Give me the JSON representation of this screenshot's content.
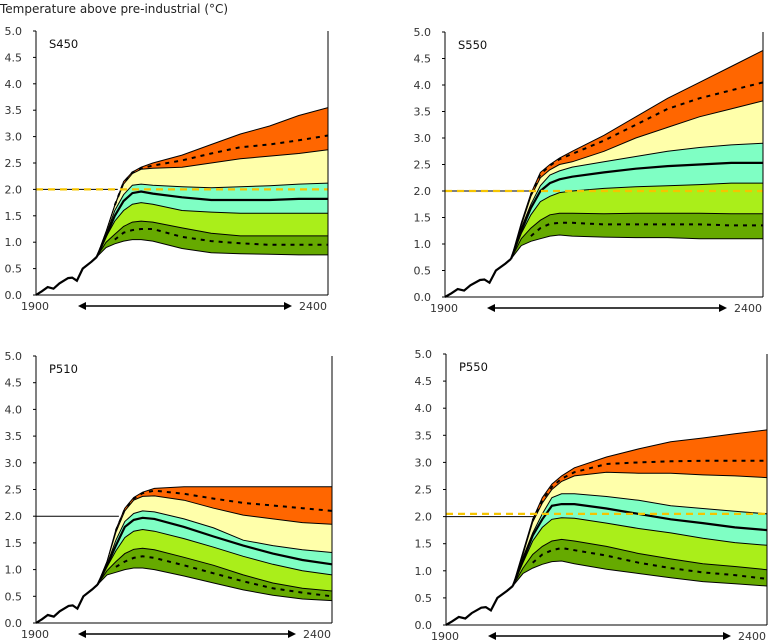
{
  "chart_data": [
    {
      "type": "area",
      "title": "S450",
      "ylabel": "Temperature above pre-industrial (°C)",
      "ylim": [
        0,
        5
      ],
      "yticks": [
        "0.0",
        "0.5",
        "1.0",
        "1.5",
        "2.0",
        "2.5",
        "3.0",
        "3.5",
        "4.0",
        "4.5",
        "5.0"
      ],
      "xlim": [
        1900,
        2400
      ],
      "xtick_labels": [
        "1900",
        "2400"
      ],
      "threshold": 2.0,
      "yellow_dashed_level": 2.0,
      "historical": [
        [
          1900,
          0
        ],
        [
          1910,
          0.07
        ],
        [
          1920,
          0.15
        ],
        [
          1930,
          0.12
        ],
        [
          1940,
          0.22
        ],
        [
          1955,
          0.32
        ],
        [
          1962,
          0.33
        ],
        [
          1970,
          0.27
        ],
        [
          1980,
          0.5
        ],
        [
          1995,
          0.63
        ],
        [
          2004,
          0.72
        ]
      ],
      "years": [
        2004,
        2020,
        2035,
        2050,
        2065,
        2080,
        2100,
        2150,
        2200,
        2250,
        2300,
        2350,
        2400
      ],
      "bounds": {
        "b0": [
          0.72,
          0.9,
          0.97,
          1.02,
          1.05,
          1.05,
          1.02,
          0.88,
          0.8,
          0.78,
          0.77,
          0.76,
          0.76
        ],
        "b1": [
          0.72,
          1.0,
          1.15,
          1.3,
          1.38,
          1.4,
          1.38,
          1.27,
          1.17,
          1.12,
          1.12,
          1.12,
          1.12
        ],
        "b2": [
          0.72,
          1.1,
          1.4,
          1.6,
          1.72,
          1.75,
          1.72,
          1.6,
          1.57,
          1.55,
          1.55,
          1.55,
          1.55
        ],
        "b3": [
          0.72,
          1.15,
          1.6,
          1.9,
          2.08,
          2.1,
          2.08,
          2.05,
          2.03,
          2.05,
          2.07,
          2.1,
          2.12
        ],
        "b4": [
          0.72,
          1.2,
          1.7,
          2.1,
          2.3,
          2.38,
          2.4,
          2.42,
          2.5,
          2.58,
          2.63,
          2.68,
          2.75
        ],
        "b5": [
          0.72,
          1.2,
          1.7,
          2.15,
          2.33,
          2.42,
          2.5,
          2.65,
          2.85,
          3.05,
          3.2,
          3.4,
          3.55
        ]
      },
      "median": [
        0.72,
        1.12,
        1.5,
        1.78,
        1.93,
        1.96,
        1.92,
        1.85,
        1.8,
        1.8,
        1.8,
        1.82,
        1.82
      ],
      "dash_low": [
        null,
        null,
        1.05,
        1.18,
        1.23,
        1.25,
        1.25,
        1.1,
        1.02,
        0.98,
        0.95,
        0.95,
        0.95
      ],
      "dash_high": [
        null,
        null,
        1.7,
        2.13,
        2.32,
        2.4,
        2.45,
        2.55,
        2.68,
        2.8,
        2.85,
        2.93,
        3.02
      ]
    },
    {
      "type": "area",
      "title": "S550",
      "ylim": [
        0,
        5
      ],
      "yticks": [
        "0.0",
        "0.5",
        "1.0",
        "1.5",
        "2.0",
        "2.5",
        "3.0",
        "3.5",
        "4.0",
        "4.5",
        "5.0"
      ],
      "xlim": [
        1900,
        2400
      ],
      "xtick_labels": [
        "1900",
        "2400"
      ],
      "threshold": 2.0,
      "yellow_dashed_level": 2.0,
      "historical": [
        [
          1900,
          0
        ],
        [
          1910,
          0.07
        ],
        [
          1920,
          0.15
        ],
        [
          1930,
          0.12
        ],
        [
          1940,
          0.22
        ],
        [
          1955,
          0.32
        ],
        [
          1962,
          0.33
        ],
        [
          1970,
          0.27
        ],
        [
          1980,
          0.5
        ],
        [
          1995,
          0.63
        ],
        [
          2004,
          0.72
        ]
      ],
      "years": [
        2004,
        2020,
        2035,
        2050,
        2065,
        2080,
        2100,
        2150,
        2200,
        2250,
        2300,
        2350,
        2400
      ],
      "bounds": {
        "b0": [
          0.72,
          0.97,
          1.05,
          1.1,
          1.15,
          1.17,
          1.15,
          1.13,
          1.12,
          1.12,
          1.1,
          1.1,
          1.1
        ],
        "b1": [
          0.72,
          1.1,
          1.3,
          1.45,
          1.55,
          1.58,
          1.58,
          1.57,
          1.58,
          1.58,
          1.58,
          1.57,
          1.57
        ],
        "b2": [
          0.72,
          1.2,
          1.55,
          1.8,
          1.9,
          1.97,
          2.0,
          2.05,
          2.08,
          2.1,
          2.12,
          2.15,
          2.15
        ],
        "b3": [
          0.72,
          1.3,
          1.75,
          2.1,
          2.3,
          2.38,
          2.45,
          2.55,
          2.65,
          2.75,
          2.82,
          2.87,
          2.9
        ],
        "b4": [
          0.72,
          1.35,
          1.9,
          2.25,
          2.4,
          2.5,
          2.55,
          2.75,
          3.0,
          3.2,
          3.4,
          3.55,
          3.7
        ],
        "b5": [
          0.72,
          1.4,
          1.95,
          2.35,
          2.5,
          2.62,
          2.75,
          3.05,
          3.4,
          3.75,
          4.05,
          4.35,
          4.65
        ]
      },
      "median": [
        0.72,
        1.25,
        1.68,
        2.0,
        2.15,
        2.22,
        2.27,
        2.35,
        2.42,
        2.47,
        2.5,
        2.53,
        2.53
      ],
      "dash_low": [
        null,
        null,
        1.15,
        1.3,
        1.38,
        1.4,
        1.4,
        1.37,
        1.37,
        1.37,
        1.37,
        1.35,
        1.35
      ],
      "dash_high": [
        null,
        null,
        1.93,
        2.32,
        2.48,
        2.6,
        2.7,
        2.95,
        3.25,
        3.55,
        3.75,
        3.9,
        4.05
      ]
    },
    {
      "type": "area",
      "title": "P510",
      "ylim": [
        0,
        5
      ],
      "yticks": [
        "0.0",
        "0.5",
        "1.0",
        "1.5",
        "2.0",
        "2.5",
        "3.0",
        "3.5",
        "4.0",
        "4.5",
        "5.0"
      ],
      "xlim": [
        1900,
        2400
      ],
      "xtick_labels": [
        "1900",
        "2400"
      ],
      "threshold": 2.0,
      "yellow_dashed_level": null,
      "historical": [
        [
          1900,
          0
        ],
        [
          1910,
          0.07
        ],
        [
          1920,
          0.15
        ],
        [
          1930,
          0.12
        ],
        [
          1940,
          0.22
        ],
        [
          1955,
          0.32
        ],
        [
          1962,
          0.33
        ],
        [
          1970,
          0.27
        ],
        [
          1980,
          0.5
        ],
        [
          1995,
          0.63
        ],
        [
          2004,
          0.72
        ]
      ],
      "years": [
        2004,
        2020,
        2035,
        2050,
        2065,
        2080,
        2100,
        2150,
        2200,
        2250,
        2300,
        2350,
        2400
      ],
      "bounds": {
        "b0": [
          0.72,
          0.9,
          0.95,
          1.0,
          1.03,
          1.03,
          1.0,
          0.88,
          0.75,
          0.62,
          0.52,
          0.45,
          0.42
        ],
        "b1": [
          0.72,
          0.98,
          1.15,
          1.3,
          1.38,
          1.4,
          1.37,
          1.23,
          1.08,
          0.9,
          0.75,
          0.65,
          0.6
        ],
        "b2": [
          0.72,
          1.05,
          1.35,
          1.6,
          1.72,
          1.75,
          1.72,
          1.58,
          1.42,
          1.25,
          1.1,
          0.98,
          0.9
        ],
        "b3": [
          0.72,
          1.1,
          1.55,
          1.9,
          2.05,
          2.1,
          2.08,
          1.95,
          1.78,
          1.55,
          1.45,
          1.37,
          1.32
        ],
        "b4": [
          0.72,
          1.15,
          1.7,
          2.1,
          2.3,
          2.37,
          2.38,
          2.3,
          2.15,
          2.02,
          1.95,
          1.88,
          1.85
        ],
        "b5": [
          0.72,
          1.15,
          1.75,
          2.15,
          2.35,
          2.45,
          2.52,
          2.55,
          2.55,
          2.55,
          2.55,
          2.55,
          2.55
        ]
      },
      "median": [
        0.72,
        1.08,
        1.45,
        1.8,
        1.93,
        1.97,
        1.95,
        1.8,
        1.62,
        1.45,
        1.3,
        1.18,
        1.1
      ],
      "dash_low": [
        null,
        null,
        1.05,
        1.15,
        1.22,
        1.25,
        1.22,
        1.08,
        0.93,
        0.78,
        0.65,
        0.57,
        0.5
      ],
      "dash_high": [
        null,
        null,
        1.73,
        2.13,
        2.33,
        2.43,
        2.48,
        2.42,
        2.33,
        2.25,
        2.2,
        2.15,
        2.1
      ]
    },
    {
      "type": "area",
      "title": "P550",
      "ylim": [
        0,
        5
      ],
      "yticks": [
        "0.0",
        "0.5",
        "1.0",
        "1.5",
        "2.0",
        "2.5",
        "3.0",
        "3.5",
        "4.0",
        "4.5",
        "5.0"
      ],
      "xlim": [
        1900,
        2400
      ],
      "xtick_labels": [
        "1900",
        "2400"
      ],
      "threshold": 2.0,
      "yellow_dashed_level": 2.05,
      "historical": [
        [
          1900,
          0
        ],
        [
          1910,
          0.07
        ],
        [
          1920,
          0.15
        ],
        [
          1930,
          0.12
        ],
        [
          1940,
          0.22
        ],
        [
          1955,
          0.32
        ],
        [
          1962,
          0.33
        ],
        [
          1970,
          0.27
        ],
        [
          1980,
          0.5
        ],
        [
          1995,
          0.63
        ],
        [
          2004,
          0.72
        ]
      ],
      "years": [
        2004,
        2020,
        2035,
        2050,
        2065,
        2080,
        2100,
        2150,
        2200,
        2250,
        2300,
        2350,
        2400
      ],
      "bounds": {
        "b0": [
          0.72,
          0.95,
          1.05,
          1.12,
          1.17,
          1.18,
          1.13,
          1.03,
          0.95,
          0.87,
          0.8,
          0.76,
          0.72
        ],
        "b1": [
          0.72,
          1.05,
          1.3,
          1.45,
          1.55,
          1.58,
          1.55,
          1.45,
          1.32,
          1.22,
          1.13,
          1.08,
          1.02
        ],
        "b2": [
          0.72,
          1.15,
          1.55,
          1.8,
          1.95,
          1.98,
          1.97,
          1.88,
          1.78,
          1.7,
          1.6,
          1.52,
          1.47
        ],
        "b3": [
          0.72,
          1.25,
          1.7,
          2.05,
          2.35,
          2.42,
          2.42,
          2.37,
          2.3,
          2.2,
          2.15,
          2.1,
          2.05
        ],
        "b4": [
          0.72,
          1.3,
          1.9,
          2.25,
          2.5,
          2.65,
          2.75,
          2.82,
          2.8,
          2.8,
          2.77,
          2.75,
          2.72
        ],
        "b5": [
          0.72,
          1.35,
          1.95,
          2.35,
          2.6,
          2.75,
          2.9,
          3.1,
          3.25,
          3.38,
          3.45,
          3.53,
          3.6
        ]
      },
      "median": [
        0.72,
        1.2,
        1.65,
        1.95,
        2.2,
        2.23,
        2.23,
        2.15,
        2.05,
        1.95,
        1.88,
        1.8,
        1.75
      ],
      "dash_low": [
        null,
        null,
        1.15,
        1.3,
        1.38,
        1.42,
        1.38,
        1.28,
        1.15,
        1.05,
        0.97,
        0.92,
        0.85
      ],
      "dash_high": [
        null,
        null,
        1.93,
        2.3,
        2.55,
        2.7,
        2.82,
        2.97,
        3.0,
        3.02,
        3.03,
        3.03,
        3.03
      ]
    }
  ],
  "colors": {
    "b0_b1": "#66aa00",
    "b1_b2": "#aaee1a",
    "b2_b3": "#7fffc4",
    "b3_b4": "#ffffaa",
    "b4_b5": "#ff6600",
    "yellow_dashed": "#f5c400",
    "line": "#000000"
  },
  "header": {
    "title": "Temperature above pre-industrial (°C)"
  }
}
